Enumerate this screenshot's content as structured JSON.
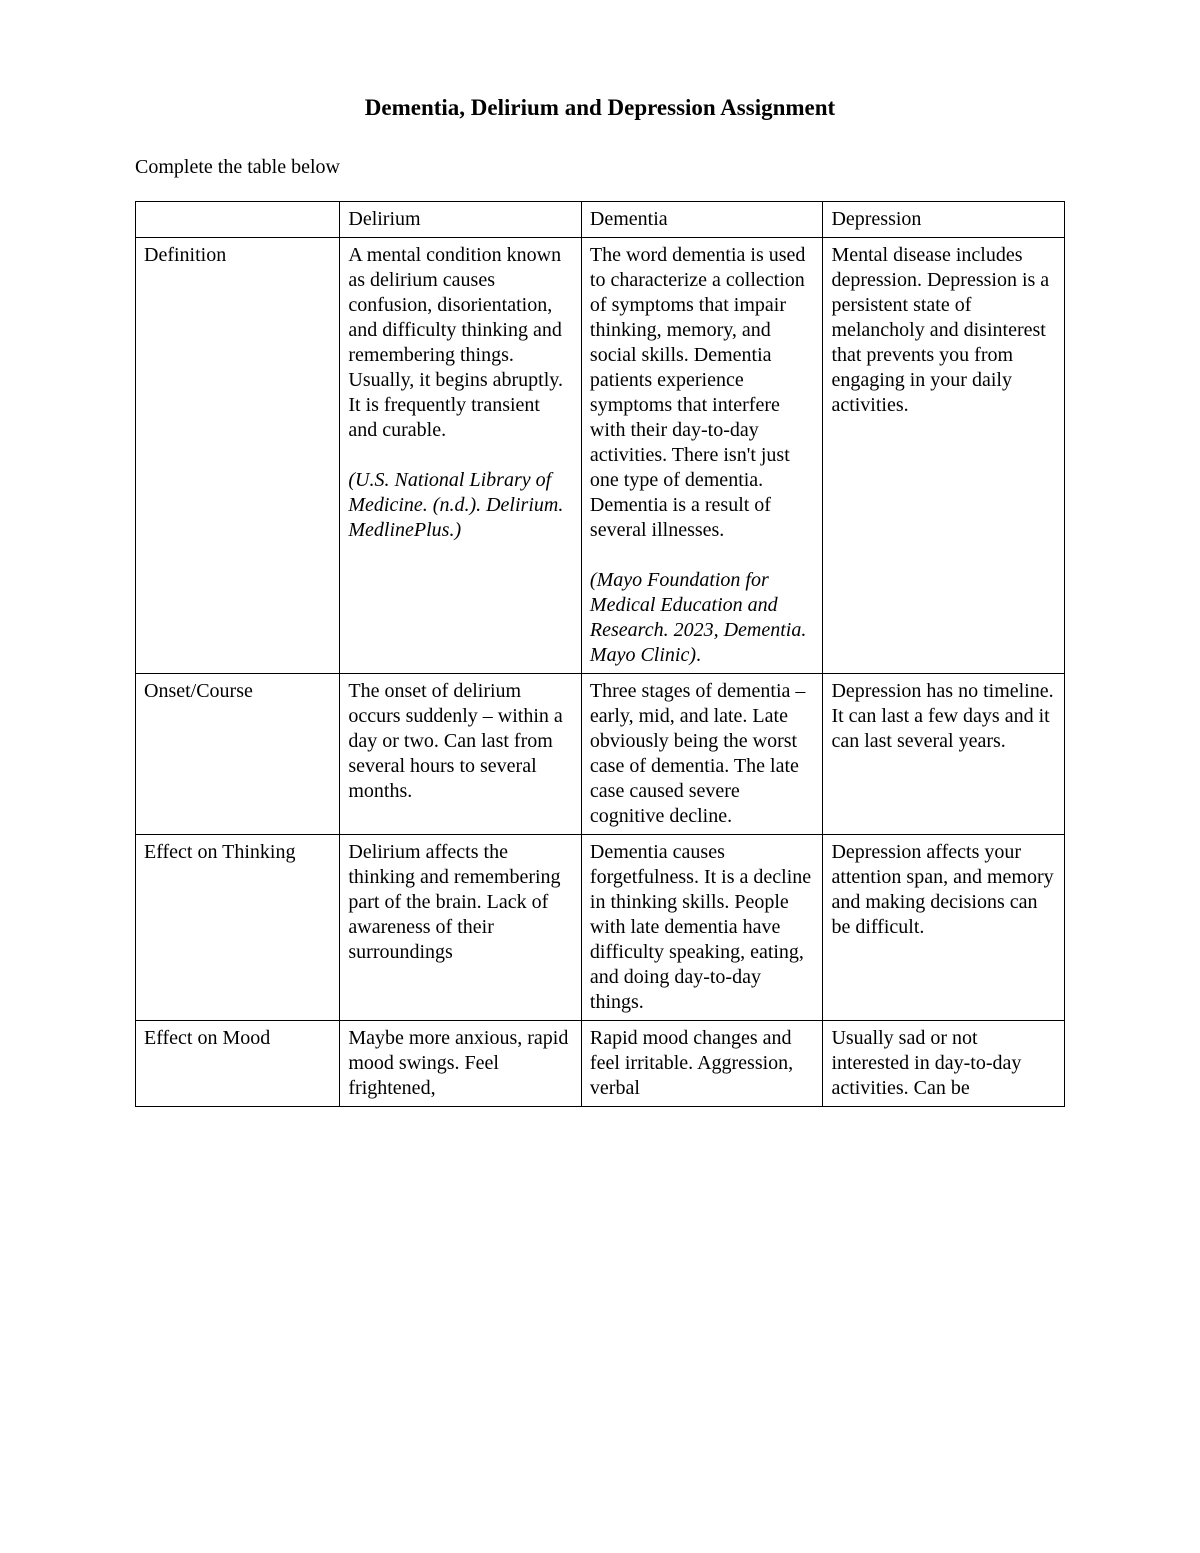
{
  "title": "Dementia, Delirium and Depression Assignment",
  "instruction": "Complete the table below",
  "table": {
    "columns": [
      "",
      "Delirium",
      "Dementia",
      "Depression"
    ],
    "rows": [
      {
        "label": "Definition",
        "delirium": {
          "text": "A mental condition known as delirium causes confusion, disorientation, and difficulty thinking and remembering things. Usually, it begins abruptly. It is frequently transient and curable.",
          "citation": "(U.S. National Library of Medicine. (n.d.). Delirium. MedlinePlus.)"
        },
        "dementia": {
          "text": "The word dementia is used to characterize a collection of symptoms that impair thinking, memory, and social skills. Dementia patients experience symptoms that interfere with their day-to-day activities. There isn't just one type of dementia. Dementia is a result of several illnesses.",
          "citation": "(Mayo Foundation for Medical Education and Research. 2023, Dementia. Mayo Clinic)",
          "citation_trailing": "."
        },
        "depression": {
          "text": "Mental disease includes depression. Depression is a persistent state of melancholy and disinterest that prevents you from engaging in your daily activities."
        }
      },
      {
        "label": "Onset/Course",
        "delirium": {
          "text": "The onset of delirium occurs suddenly – within a day or two. Can last from several hours to several months."
        },
        "dementia": {
          "text": "Three stages of dementia – early, mid, and late. Late obviously being the worst case of dementia. The late case caused severe cognitive decline."
        },
        "depression": {
          "text": "Depression has no timeline. It can last a few days and it can last several years."
        }
      },
      {
        "label": "Effect on Thinking",
        "delirium": {
          "text": "Delirium affects the thinking and remembering part of the brain. Lack of awareness of their surroundings"
        },
        "dementia": {
          "text": "Dementia causes forgetfulness. It is a decline in thinking skills. People with late dementia have difficulty speaking, eating, and doing day-to-day things."
        },
        "depression": {
          "text": "Depression affects your attention span, and memory and making decisions can be difficult."
        }
      },
      {
        "label": "Effect on Mood",
        "delirium": {
          "text": "Maybe more anxious, rapid mood swings. Feel frightened,"
        },
        "dementia": {
          "text": "Rapid mood changes and feel irritable. Aggression, verbal"
        },
        "depression": {
          "text": "Usually sad or not interested in day-to-day activities. Can be"
        }
      }
    ]
  },
  "style": {
    "page_bg": "#ffffff",
    "text_color": "#000000",
    "border_color": "#000000",
    "title_fontsize": 23,
    "body_fontsize": 20,
    "font_family": "Times New Roman"
  }
}
